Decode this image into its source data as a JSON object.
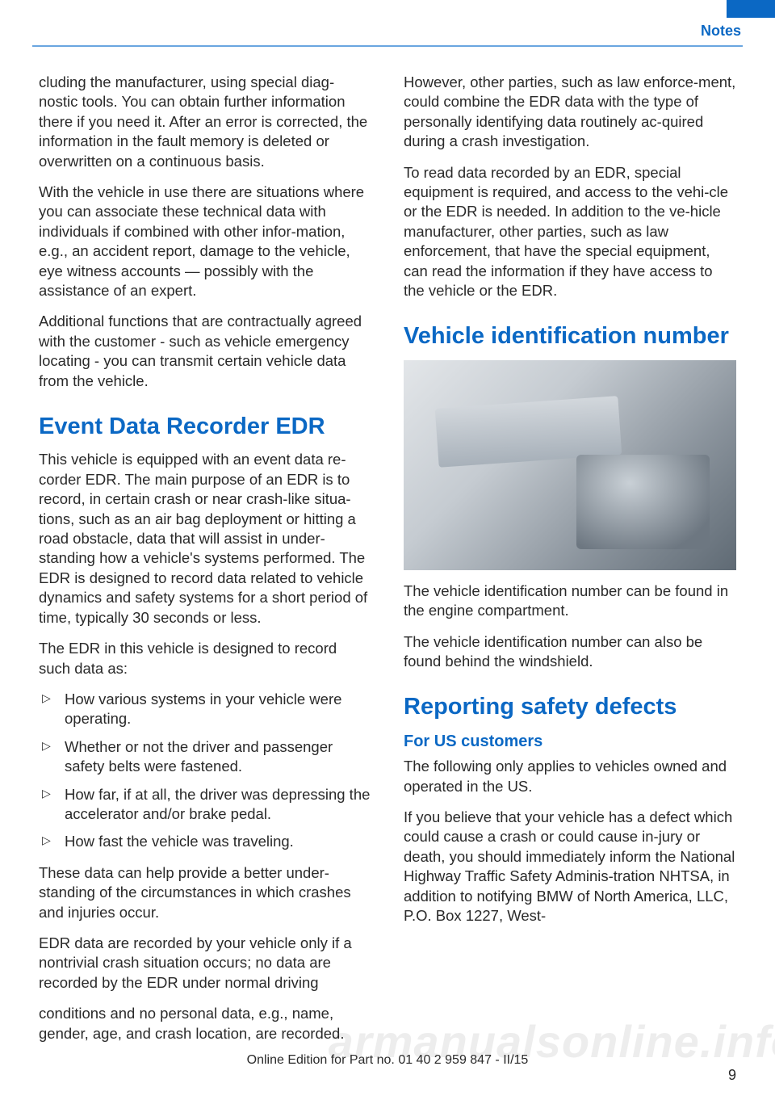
{
  "header": {
    "section_label": "Notes"
  },
  "col_left": {
    "p1": "cluding the manufacturer, using special diag‐nostic tools. You can obtain further information there if you need it. After an error is corrected, the information in the fault memory is deleted or overwritten on a continuous basis.",
    "p2": "With the vehicle in use there are situations where you can associate these technical data with individuals if combined with other infor‐mation, e.g., an accident report, damage to the vehicle, eye witness accounts — possibly with the assistance of an expert.",
    "p3": "Additional functions that are contractually agreed with the customer - such as vehicle emergency locating - you can transmit certain vehicle data from the vehicle.",
    "h_edr": "Event Data Recorder EDR",
    "p4": "This vehicle is equipped with an event data re‐corder EDR. The main purpose of an EDR is to record, in certain crash or near crash-like situa‐tions, such as an air bag deployment or hitting a road obstacle, data that will assist in under‐standing how a vehicle's systems performed. The EDR is designed to record data related to vehicle dynamics and safety systems for a short period of time, typically 30 seconds or less.",
    "p5": "The EDR in this vehicle is designed to record such data as:",
    "bullets": [
      "How various systems in your vehicle were operating.",
      "Whether or not the driver and passenger safety belts were fastened.",
      "How far, if at all, the driver was depressing the accelerator and/or brake pedal.",
      "How fast the vehicle was traveling."
    ],
    "p6": "These data can help provide a better under‐standing of the circumstances in which crashes and injuries occur.",
    "p7": "EDR data are recorded by your vehicle only if a nontrivial crash situation occurs; no data are recorded by the EDR under normal driving"
  },
  "col_right": {
    "p1": "conditions and no personal data, e.g., name, gender, age, and crash location, are recorded.",
    "p2": "However, other parties, such as law enforce‐ment, could combine the EDR data with the type of personally identifying data routinely ac‐quired during a crash investigation.",
    "p3": "To read data recorded by an EDR, special equipment is required, and access to the vehi‐cle or the EDR is needed. In addition to the ve‐hicle manufacturer, other parties, such as law enforcement, that have the special equipment, can read the information if they have access to the vehicle or the EDR.",
    "h_vin": "Vehicle identification number",
    "p4": "The vehicle identification number can be found in the engine compartment.",
    "p5": "The vehicle identification number can also be found behind the windshield.",
    "h_defects": "Reporting safety defects",
    "h_us": "For US customers",
    "p6": "The following only applies to vehicles owned and operated in the US.",
    "p7": "If you believe that your vehicle has a defect which could cause a crash or could cause in‐jury or death, you should immediately inform the National Highway Traffic Safety Adminis‐tration NHTSA, in addition to notifying BMW of North America, LLC, P.O. Box 1227, West‐"
  },
  "footer": {
    "line": "Online Edition for Part no. 01 40 2 959 847 - II/15",
    "page": "9"
  },
  "watermark": "armanualsonline.info",
  "colors": {
    "accent": "#0b68c4",
    "rule": "#6aa6e0",
    "text": "#2a2a2a"
  }
}
